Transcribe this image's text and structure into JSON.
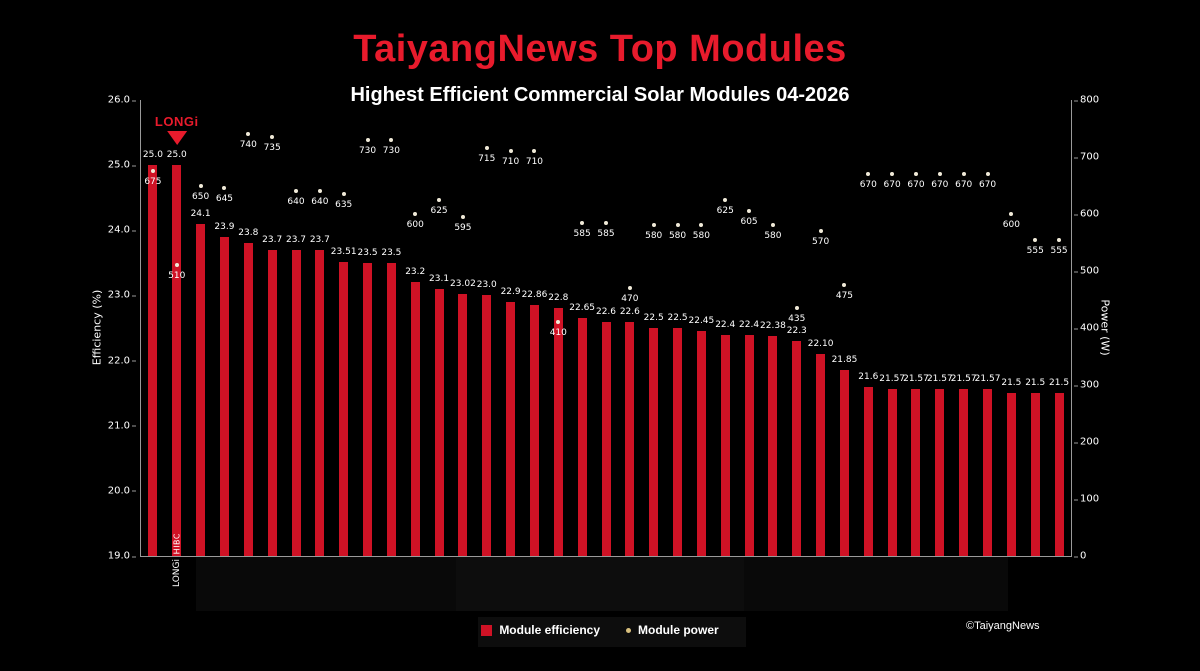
{
  "header": {
    "title": "TaiyangNews Top Modules",
    "subtitle": "Highest Efficient Commercial Solar Modules 04-2026"
  },
  "annotation": {
    "brand_label": "LONGi",
    "target_index": 1
  },
  "legend": {
    "efficiency_label": "Module efficiency",
    "power_label": "Module power"
  },
  "footer": {
    "copyright": "©TaiyangNews"
  },
  "colors": {
    "background": "#000000",
    "title_red": "#e81b2c",
    "bar_red": "#cf1225",
    "dot_cream": "#f0ead8",
    "legend_dot_gold": "#d9c07e",
    "axis_gray": "#9a9a9a"
  },
  "chart_data": {
    "type": "bar",
    "title": "TaiyangNews Top Modules",
    "subtitle": "Highest Efficient Commercial Solar Modules 04-2026",
    "ylabel_left": "Efficiency (%)",
    "ylabel_right": "Power (W)",
    "ylim_left": [
      19.0,
      26.0
    ],
    "ylim_right": [
      0,
      800
    ],
    "yticks_left": [
      "26.0",
      "25.0",
      "24.0",
      "23.0",
      "22.0",
      "21.0",
      "20.0",
      "19.0"
    ],
    "yticks_right": [
      "800",
      "700",
      "600",
      "500",
      "400",
      "300",
      "200",
      "100",
      "0"
    ],
    "grid": false,
    "legend_position": "bottom",
    "series_names": [
      "Module efficiency",
      "Module power"
    ],
    "modules": [
      {
        "label": "25.0",
        "efficiency": 25.0,
        "power": 675
      },
      {
        "label": "25.0",
        "efficiency": 25.0,
        "power": 510,
        "bar_label": "HIBC",
        "x_label": "LONGi"
      },
      {
        "label": "24.1",
        "efficiency": 24.1,
        "power": 650
      },
      {
        "label": "23.9",
        "efficiency": 23.9,
        "power": 645
      },
      {
        "label": "23.8",
        "efficiency": 23.8,
        "power": 740
      },
      {
        "label": "23.7",
        "efficiency": 23.7,
        "power": 735
      },
      {
        "label": "23.7",
        "efficiency": 23.7,
        "power": 640
      },
      {
        "label": "23.7",
        "efficiency": 23.7,
        "power": 640
      },
      {
        "label": "23.51",
        "efficiency": 23.51,
        "power": 635
      },
      {
        "label": "23.5",
        "efficiency": 23.5,
        "power": 730
      },
      {
        "label": "23.5",
        "efficiency": 23.5,
        "power": 730
      },
      {
        "label": "23.2",
        "efficiency": 23.2,
        "power": 600
      },
      {
        "label": "23.1",
        "efficiency": 23.1,
        "power": 625
      },
      {
        "label": "23.02",
        "efficiency": 23.02,
        "power": 595
      },
      {
        "label": "23.0",
        "efficiency": 23.0,
        "power": 715
      },
      {
        "label": "22.9",
        "efficiency": 22.9,
        "power": 710
      },
      {
        "label": "22.86",
        "efficiency": 22.86,
        "power": 710
      },
      {
        "label": "22.8",
        "efficiency": 22.8,
        "power": 410
      },
      {
        "label": "22.65",
        "efficiency": 22.65,
        "power": 585
      },
      {
        "label": "22.6",
        "efficiency": 22.6,
        "power": 585
      },
      {
        "label": "22.6",
        "efficiency": 22.6,
        "power": 470
      },
      {
        "label": "22.5",
        "efficiency": 22.5,
        "power": 580
      },
      {
        "label": "22.5",
        "efficiency": 22.5,
        "power": 580
      },
      {
        "label": "22.45",
        "efficiency": 22.45,
        "power": 580
      },
      {
        "label": "22.4",
        "efficiency": 22.4,
        "power": 625
      },
      {
        "label": "22.4",
        "efficiency": 22.4,
        "power": 605
      },
      {
        "label": "22.38",
        "efficiency": 22.38,
        "power": 580
      },
      {
        "label": "22.3",
        "efficiency": 22.3,
        "power": 435
      },
      {
        "label": "22.10",
        "efficiency": 22.1,
        "power": 570
      },
      {
        "label": "21.85",
        "efficiency": 21.85,
        "power": 475
      },
      {
        "label": "21.6",
        "efficiency": 21.6,
        "power": 670
      },
      {
        "label": "21.57",
        "efficiency": 21.57,
        "power": 670
      },
      {
        "label": "21.57",
        "efficiency": 21.57,
        "power": 670
      },
      {
        "label": "21.57",
        "efficiency": 21.57,
        "power": 670
      },
      {
        "label": "21.57",
        "efficiency": 21.57,
        "power": 670
      },
      {
        "label": "21.57",
        "efficiency": 21.57,
        "power": 670
      },
      {
        "label": "21.5",
        "efficiency": 21.5,
        "power": 600
      },
      {
        "label": "21.5",
        "efficiency": 21.5,
        "power": 555
      },
      {
        "label": "21.5",
        "efficiency": 21.5,
        "power": 555
      }
    ]
  }
}
